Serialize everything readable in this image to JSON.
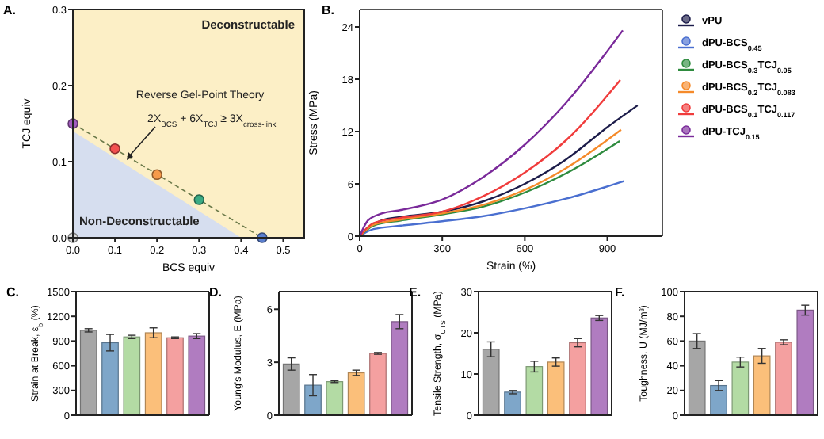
{
  "chart_data": [
    {
      "type": "scatter",
      "title": "A.",
      "xlabel": "BCS equiv",
      "ylabel": "TCJ equiv",
      "xlim": [
        0,
        0.55
      ],
      "ylim": [
        0,
        0.3
      ],
      "xticks": [
        {
          "value": 0,
          "label": "0.0"
        },
        0.1,
        0.2,
        0.3,
        0.4,
        0.5
      ],
      "yticks": [
        {
          "value": 0,
          "label": "0.0"
        },
        0.1,
        0.2,
        0.3
      ],
      "bands": [
        {
          "axis": "y",
          "from": 0,
          "to": 0.3,
          "color": "#fcefc6"
        }
      ],
      "annotations": [
        "Deconstructable",
        "Reverse Gel-Point Theory",
        "2X$_{BCS}$ + 6X$_{TCJ}$ ≥ 3X$_{cross-link}$",
        "Non-Deconstructable"
      ],
      "series": [
        {
          "type": "area",
          "color": "#d6deef",
          "x": [
            0,
            0.4
          ],
          "values": [
            0.14,
            0
          ]
        },
        {
          "type": "line",
          "color": "#6b7a4a",
          "line_style": "dashed",
          "x": [
            0,
            0.45
          ],
          "values": [
            0.15,
            0
          ]
        },
        {
          "type": "scatter",
          "marker": "circle",
          "x": [
            0,
            0,
            0.1,
            0.2,
            0.3,
            0.45
          ],
          "values": [
            0,
            0.15,
            0.117,
            0.083,
            0.05,
            0
          ],
          "colors": [
            "#d9d9d9",
            "#a45cc0",
            "#f2504f",
            "#f79a4a",
            "#3bab84",
            "#5b7fcf"
          ]
        }
      ]
    },
    {
      "type": "line",
      "title": "B.",
      "xlabel": "Strain (%)",
      "ylabel": "Stress (MPa)",
      "xlim": [
        0,
        1100
      ],
      "ylim": [
        0,
        26
      ],
      "xticks": [
        0,
        300,
        600,
        900
      ],
      "yticks": [
        0,
        6,
        12,
        18,
        24
      ],
      "legend": "right",
      "series": [
        {
          "name": "vPU",
          "color": "#1c1c4a",
          "x": [
            0,
            30,
            80,
            150,
            300,
            450,
            600,
            750,
            900,
            1010
          ],
          "values": [
            0,
            1.0,
            1.8,
            2.2,
            2.8,
            4.0,
            6.0,
            8.8,
            12.5,
            15
          ]
        },
        {
          "name": "dPU-BCS$_{0.45}$",
          "color": "#4a6fd0",
          "x": [
            0,
            50,
            150,
            300,
            450,
            600,
            750,
            960
          ],
          "values": [
            0,
            0.8,
            1.2,
            1.7,
            2.3,
            3.2,
            4.3,
            6.3
          ]
        },
        {
          "name": "dPU-BCS$_{0.3}$TCJ$_{0.05}$",
          "color": "#2e8b3e",
          "x": [
            0,
            50,
            150,
            300,
            450,
            600,
            750,
            945
          ],
          "values": [
            0,
            1.2,
            1.8,
            2.5,
            3.4,
            5.0,
            7.2,
            10.9
          ]
        },
        {
          "name": "dPU-BCS$_{0.2}$TCJ$_{0.083}$",
          "color": "#f58a2a",
          "x": [
            0,
            50,
            150,
            300,
            450,
            600,
            750,
            950
          ],
          "values": [
            0,
            1.3,
            1.9,
            2.6,
            3.6,
            5.3,
            7.8,
            12.2
          ]
        },
        {
          "name": "dPU-BCS$_{0.1}$TCJ$_{0.117}$",
          "color": "#f03c3c",
          "x": [
            0,
            50,
            150,
            300,
            450,
            600,
            750,
            947
          ],
          "values": [
            0,
            1.5,
            2.1,
            2.8,
            4.6,
            7.3,
            11.0,
            17.9
          ]
        },
        {
          "name": "dPU-TCJ$_{0.15}$",
          "color": "#7a2a9a",
          "x": [
            0,
            30,
            80,
            150,
            300,
            450,
            600,
            750,
            956
          ],
          "values": [
            0,
            1.8,
            2.6,
            3.0,
            4.2,
            6.8,
            10.5,
            15.3,
            23.6
          ]
        }
      ]
    },
    {
      "type": "bar",
      "title": "C.",
      "ylabel": "Strain at Break, ε$_{b}$ (%)",
      "ylim": [
        0,
        1500
      ],
      "yticks": [
        0,
        300,
        600,
        900,
        1200,
        1500
      ],
      "categories": [
        null,
        null,
        null,
        null,
        null,
        null
      ],
      "values": [
        1030,
        880,
        950,
        1000,
        940,
        960
      ],
      "errors": [
        20,
        100,
        20,
        60,
        10,
        30
      ],
      "colors": [
        "#a6a6a6",
        "#7ea6c9",
        "#b3dba4",
        "#fbbf7a",
        "#f4a0a0",
        "#b07cc0"
      ]
    },
    {
      "type": "bar",
      "title": "D.",
      "ylabel": "Young's Modulus, E (MPa)",
      "ylim": [
        0,
        7
      ],
      "yticks": [
        0,
        3,
        6
      ],
      "categories": [
        null,
        null,
        null,
        null,
        null,
        null
      ],
      "values": [
        2.9,
        1.7,
        1.9,
        2.4,
        3.5,
        5.3
      ],
      "errors": [
        0.35,
        0.6,
        0.05,
        0.15,
        0.05,
        0.4
      ],
      "colors": [
        "#a6a6a6",
        "#7ea6c9",
        "#b3dba4",
        "#fbbf7a",
        "#f4a0a0",
        "#b07cc0"
      ]
    },
    {
      "type": "bar",
      "title": "E.",
      "ylabel": "Tensile Strength, σ$_{UTS}$ (MPa)",
      "ylim": [
        0,
        30
      ],
      "yticks": [
        0,
        10,
        20,
        30
      ],
      "categories": [
        null,
        null,
        null,
        null,
        null,
        null
      ],
      "values": [
        16.0,
        5.6,
        11.8,
        12.9,
        17.6,
        23.6
      ],
      "errors": [
        1.8,
        0.4,
        1.3,
        1.0,
        1.0,
        0.6
      ],
      "colors": [
        "#a6a6a6",
        "#7ea6c9",
        "#b3dba4",
        "#fbbf7a",
        "#f4a0a0",
        "#b07cc0"
      ]
    },
    {
      "type": "bar",
      "title": "F.",
      "ylabel": "Toughness, U (MJ/m³)",
      "ylim": [
        0,
        100
      ],
      "yticks": [
        0,
        20,
        40,
        60,
        80,
        100
      ],
      "categories": [
        null,
        null,
        null,
        null,
        null,
        null
      ],
      "values": [
        60,
        24,
        43,
        48,
        59,
        85
      ],
      "errors": [
        6,
        4,
        4,
        6,
        2,
        4
      ],
      "colors": [
        "#a6a6a6",
        "#7ea6c9",
        "#b3dba4",
        "#fbbf7a",
        "#f4a0a0",
        "#b07cc0"
      ]
    }
  ]
}
